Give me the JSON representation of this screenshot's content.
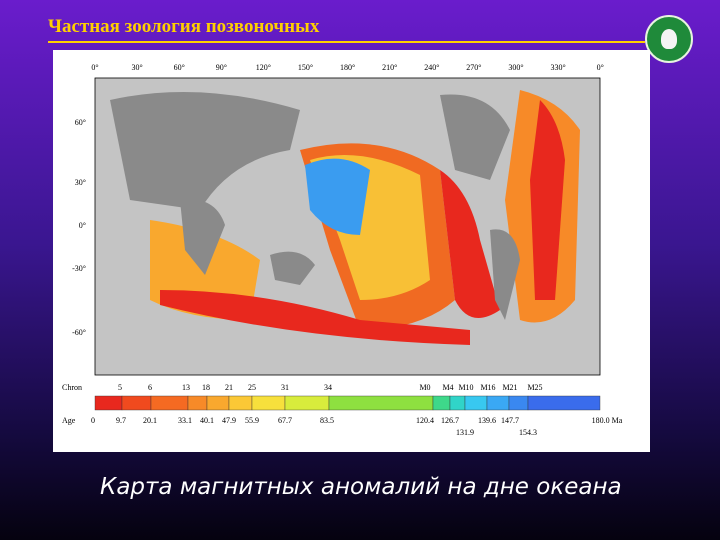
{
  "header": {
    "title": "Частная зоология позвоночных"
  },
  "map": {
    "lon_labels": [
      "0°",
      "30°",
      "60°",
      "90°",
      "120°",
      "150°",
      "180°",
      "210°",
      "240°",
      "270°",
      "300°",
      "330°",
      "0°"
    ],
    "lat_labels": [
      "60°",
      "30°",
      "0°",
      "-30°",
      "-60°"
    ]
  },
  "legend": {
    "chron_label": "Chron",
    "chrons": [
      "5",
      "6",
      "13",
      "18",
      "21",
      "25",
      "31",
      "34",
      "M0",
      "M4",
      "M10",
      "M16",
      "M21",
      "M25"
    ],
    "age_label": "Age",
    "ages": [
      "0",
      "9.7",
      "20.1",
      "33.1",
      "40.1",
      "47.9",
      "55.9",
      "67.7",
      "83.5",
      "120.4",
      "126.7",
      "131.9",
      "139.6",
      "147.7",
      "154.3",
      "180.0 Ma"
    ],
    "colors": [
      "#e8281e",
      "#f04a1e",
      "#f56a22",
      "#f78a28",
      "#f9a82e",
      "#fbc836",
      "#f7e03c",
      "#d8ec3c",
      "#8ee040",
      "#3ed88a",
      "#30d4c8",
      "#38c8f0",
      "#3aa8f4",
      "#3a88f0",
      "#3a6cec"
    ]
  },
  "caption": "Карта магнитных аномалий на дне океана"
}
